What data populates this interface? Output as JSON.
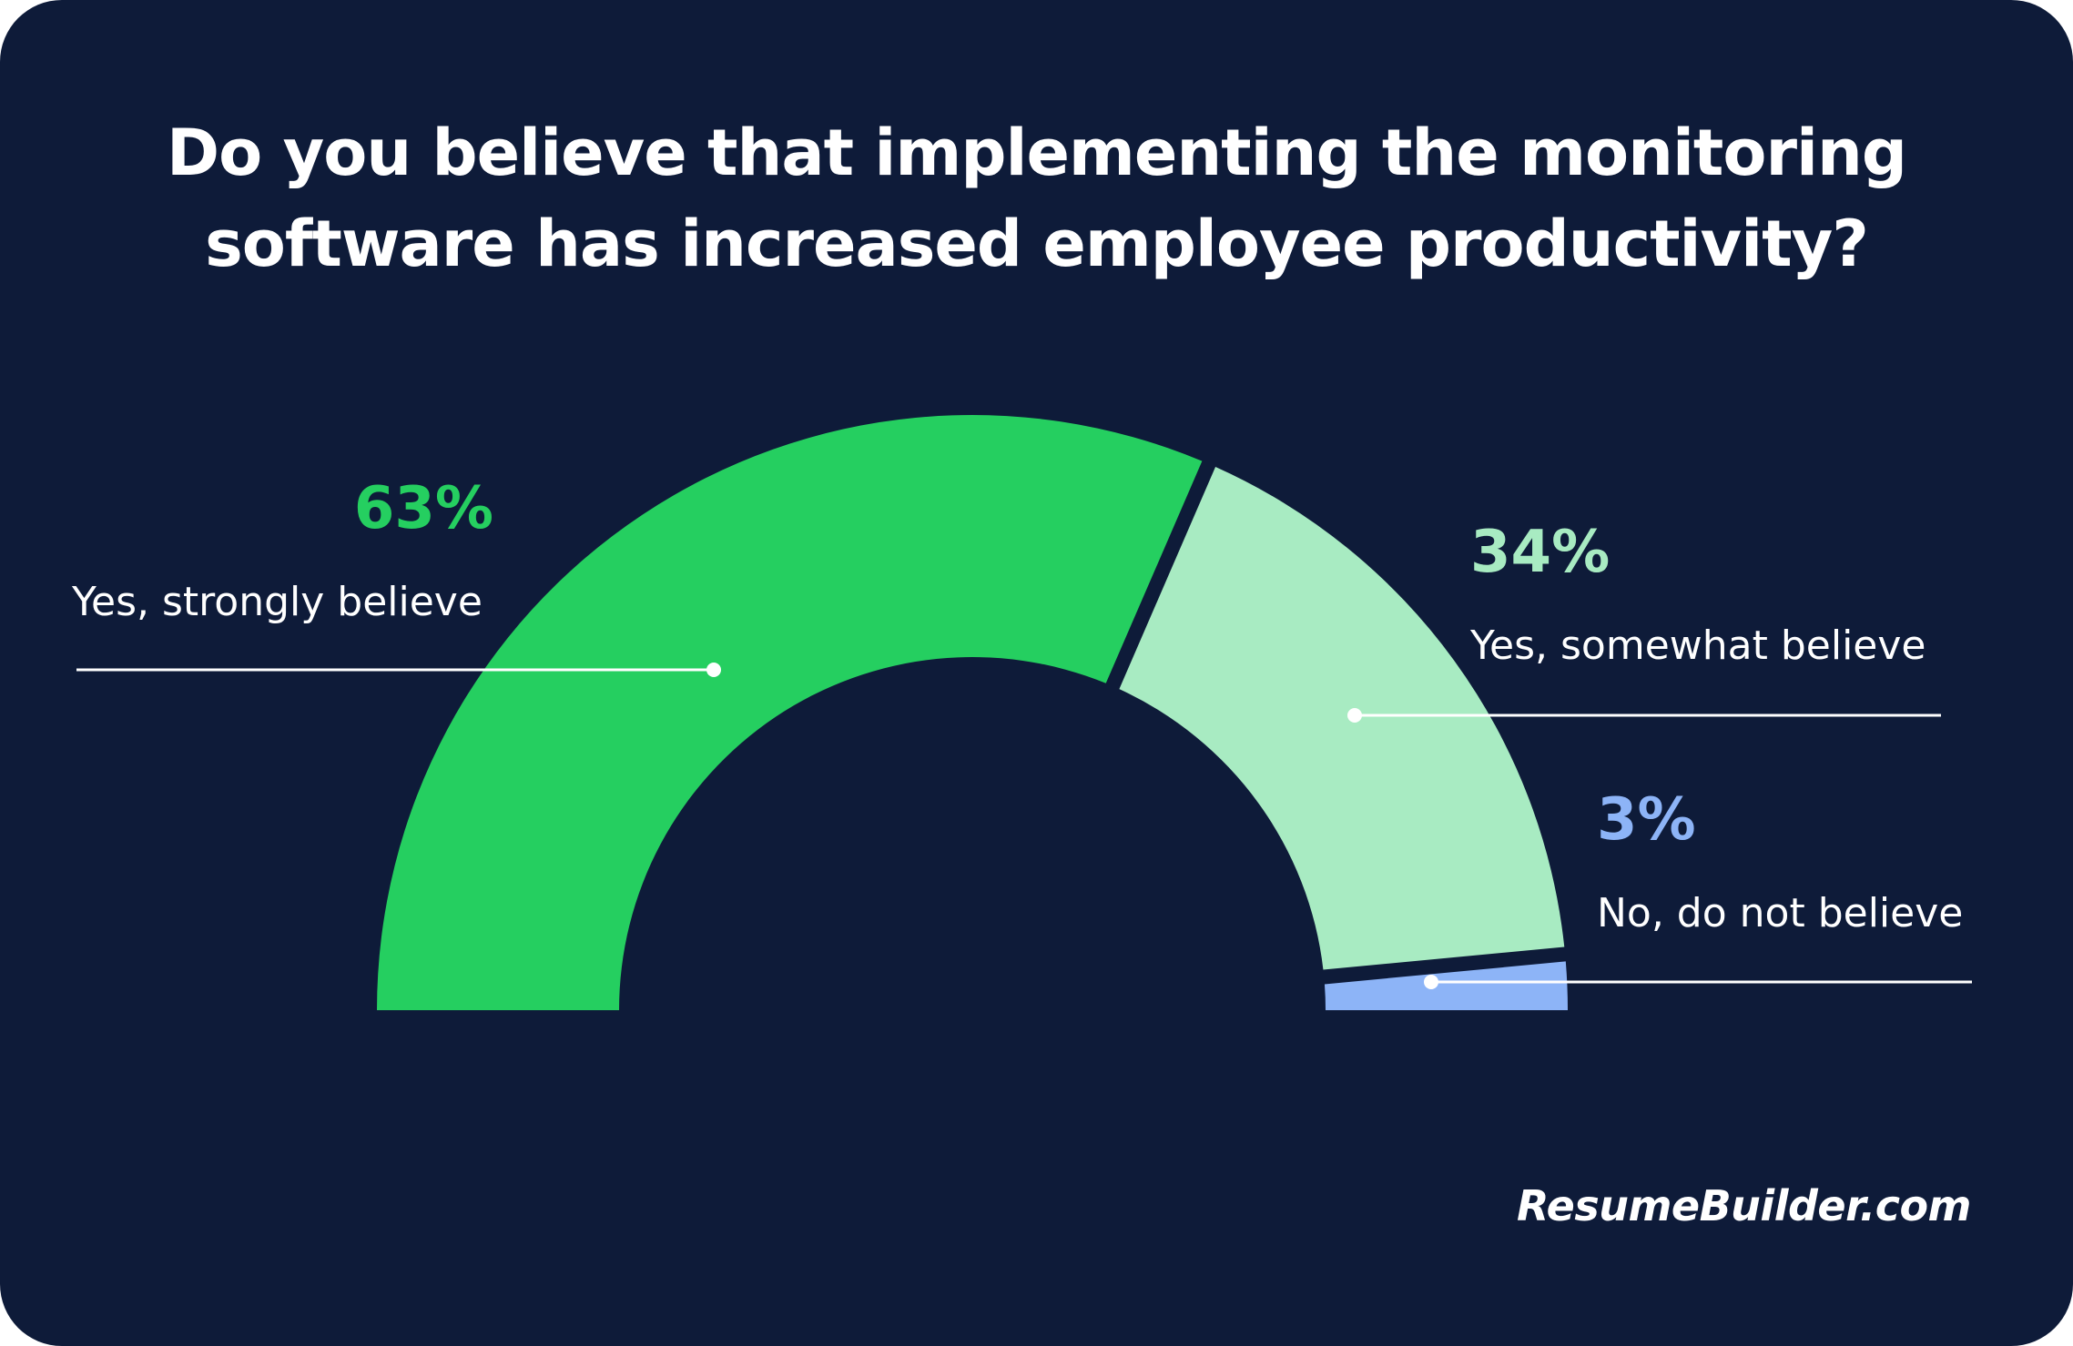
{
  "title": {
    "line1": "Do you believe that implementing the monitoring",
    "line2": "software has increased employee productivity?"
  },
  "brand": "ResumeBuilder.com",
  "chart_data": {
    "type": "pie",
    "variant": "semi-donut",
    "title": "Do you believe that implementing the monitoring software has increased employee productivity?",
    "categories": [
      "Yes, strongly believe",
      "Yes, somewhat believe",
      "No, do not believe"
    ],
    "values": [
      63,
      34,
      3
    ],
    "value_labels": [
      "63%",
      "34%",
      "3%"
    ],
    "colors": [
      "#25cf60",
      "#a8ebc2",
      "#8db4f7"
    ],
    "label_colors": [
      "#25cf60",
      "#a8ebc2",
      "#8db4f7"
    ]
  }
}
